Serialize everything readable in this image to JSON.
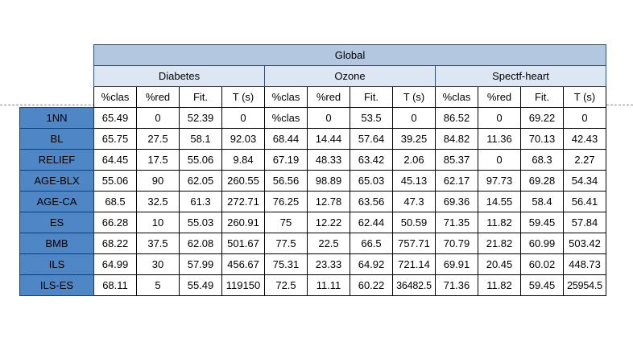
{
  "table": {
    "group_header": "Global",
    "datasets": [
      "Diabetes",
      "Ozone",
      "Spectf-heart"
    ],
    "metrics": [
      "%clas",
      "%red",
      "Fit.",
      "T (s)"
    ],
    "rows": [
      {
        "method": "1NN",
        "values": [
          "65.49",
          "0",
          "52.39",
          "0",
          "%clas",
          "0",
          "53.5",
          "0",
          "86.52",
          "0",
          "69.22",
          "0"
        ]
      },
      {
        "method": "BL",
        "values": [
          "65.75",
          "27.5",
          "58.1",
          "92.03",
          "68.44",
          "14.44",
          "57.64",
          "39.25",
          "84.82",
          "11.36",
          "70.13",
          "42.43"
        ]
      },
      {
        "method": "RELIEF",
        "values": [
          "64.45",
          "17.5",
          "55.06",
          "9.84",
          "67.19",
          "48.33",
          "63.42",
          "2.06",
          "85.37",
          "0",
          "68.3",
          "2.27"
        ]
      },
      {
        "method": "AGE-BLX",
        "values": [
          "55.06",
          "90",
          "62.05",
          "260.55",
          "56.56",
          "98.89",
          "65.03",
          "45.13",
          "62.17",
          "97.73",
          "69.28",
          "54.34"
        ]
      },
      {
        "method": "AGE-CA",
        "values": [
          "68.5",
          "32.5",
          "61.3",
          "272.71",
          "76.25",
          "12.78",
          "63.56",
          "47.3",
          "69.36",
          "14.55",
          "58.4",
          "56.41"
        ]
      },
      {
        "method": "ES",
        "values": [
          "66.28",
          "10",
          "55.03",
          "260.91",
          "75",
          "12.22",
          "62.44",
          "50.59",
          "71.35",
          "11.82",
          "59.45",
          "57.84"
        ]
      },
      {
        "method": "BMB",
        "values": [
          "68.22",
          "37.5",
          "62.08",
          "501.67",
          "77.5",
          "22.5",
          "66.5",
          "757.71",
          "70.79",
          "21.82",
          "60.99",
          "503.42"
        ]
      },
      {
        "method": "ILS",
        "values": [
          "64.99",
          "30",
          "57.99",
          "456.67",
          "75.31",
          "23.33",
          "64.92",
          "721.14",
          "69.91",
          "20.45",
          "60.02",
          "448.73"
        ]
      },
      {
        "method": "ILS-ES",
        "values": [
          "68.11",
          "5",
          "55.49",
          "119150",
          "72.5",
          "11.11",
          "60.22",
          "36482.5",
          "71.36",
          "11.82",
          "59.45",
          "25954.5"
        ]
      }
    ]
  }
}
